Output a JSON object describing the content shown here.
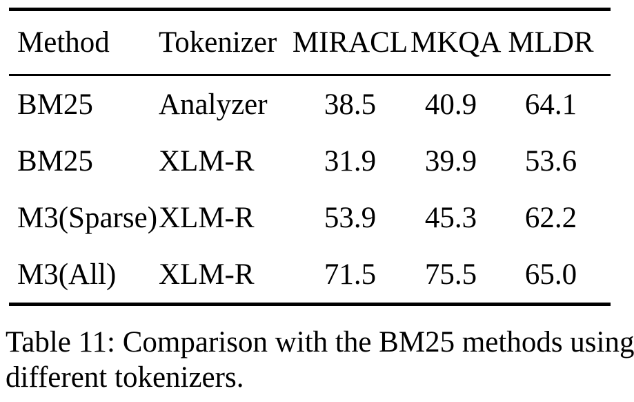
{
  "table": {
    "columns": [
      "Method",
      "Tokenizer",
      "MIRACL",
      "MKQA",
      "MLDR"
    ],
    "rows": [
      [
        "BM25",
        "Analyzer",
        "38.5",
        "40.9",
        "64.1"
      ],
      [
        "BM25",
        "XLM-R",
        "31.9",
        "39.9",
        "53.6"
      ],
      [
        "M3(Sparse)",
        "XLM-R",
        "53.9",
        "45.3",
        "62.2"
      ],
      [
        "M3(All)",
        "XLM-R",
        "71.5",
        "75.5",
        "65.0"
      ]
    ]
  },
  "caption": {
    "lines": [
      "Table 11: Comparison with the BM25 methods using",
      "different tokenizers."
    ]
  },
  "colors": {
    "text": "#000000",
    "background": "#ffffff",
    "rule": "#000000"
  }
}
